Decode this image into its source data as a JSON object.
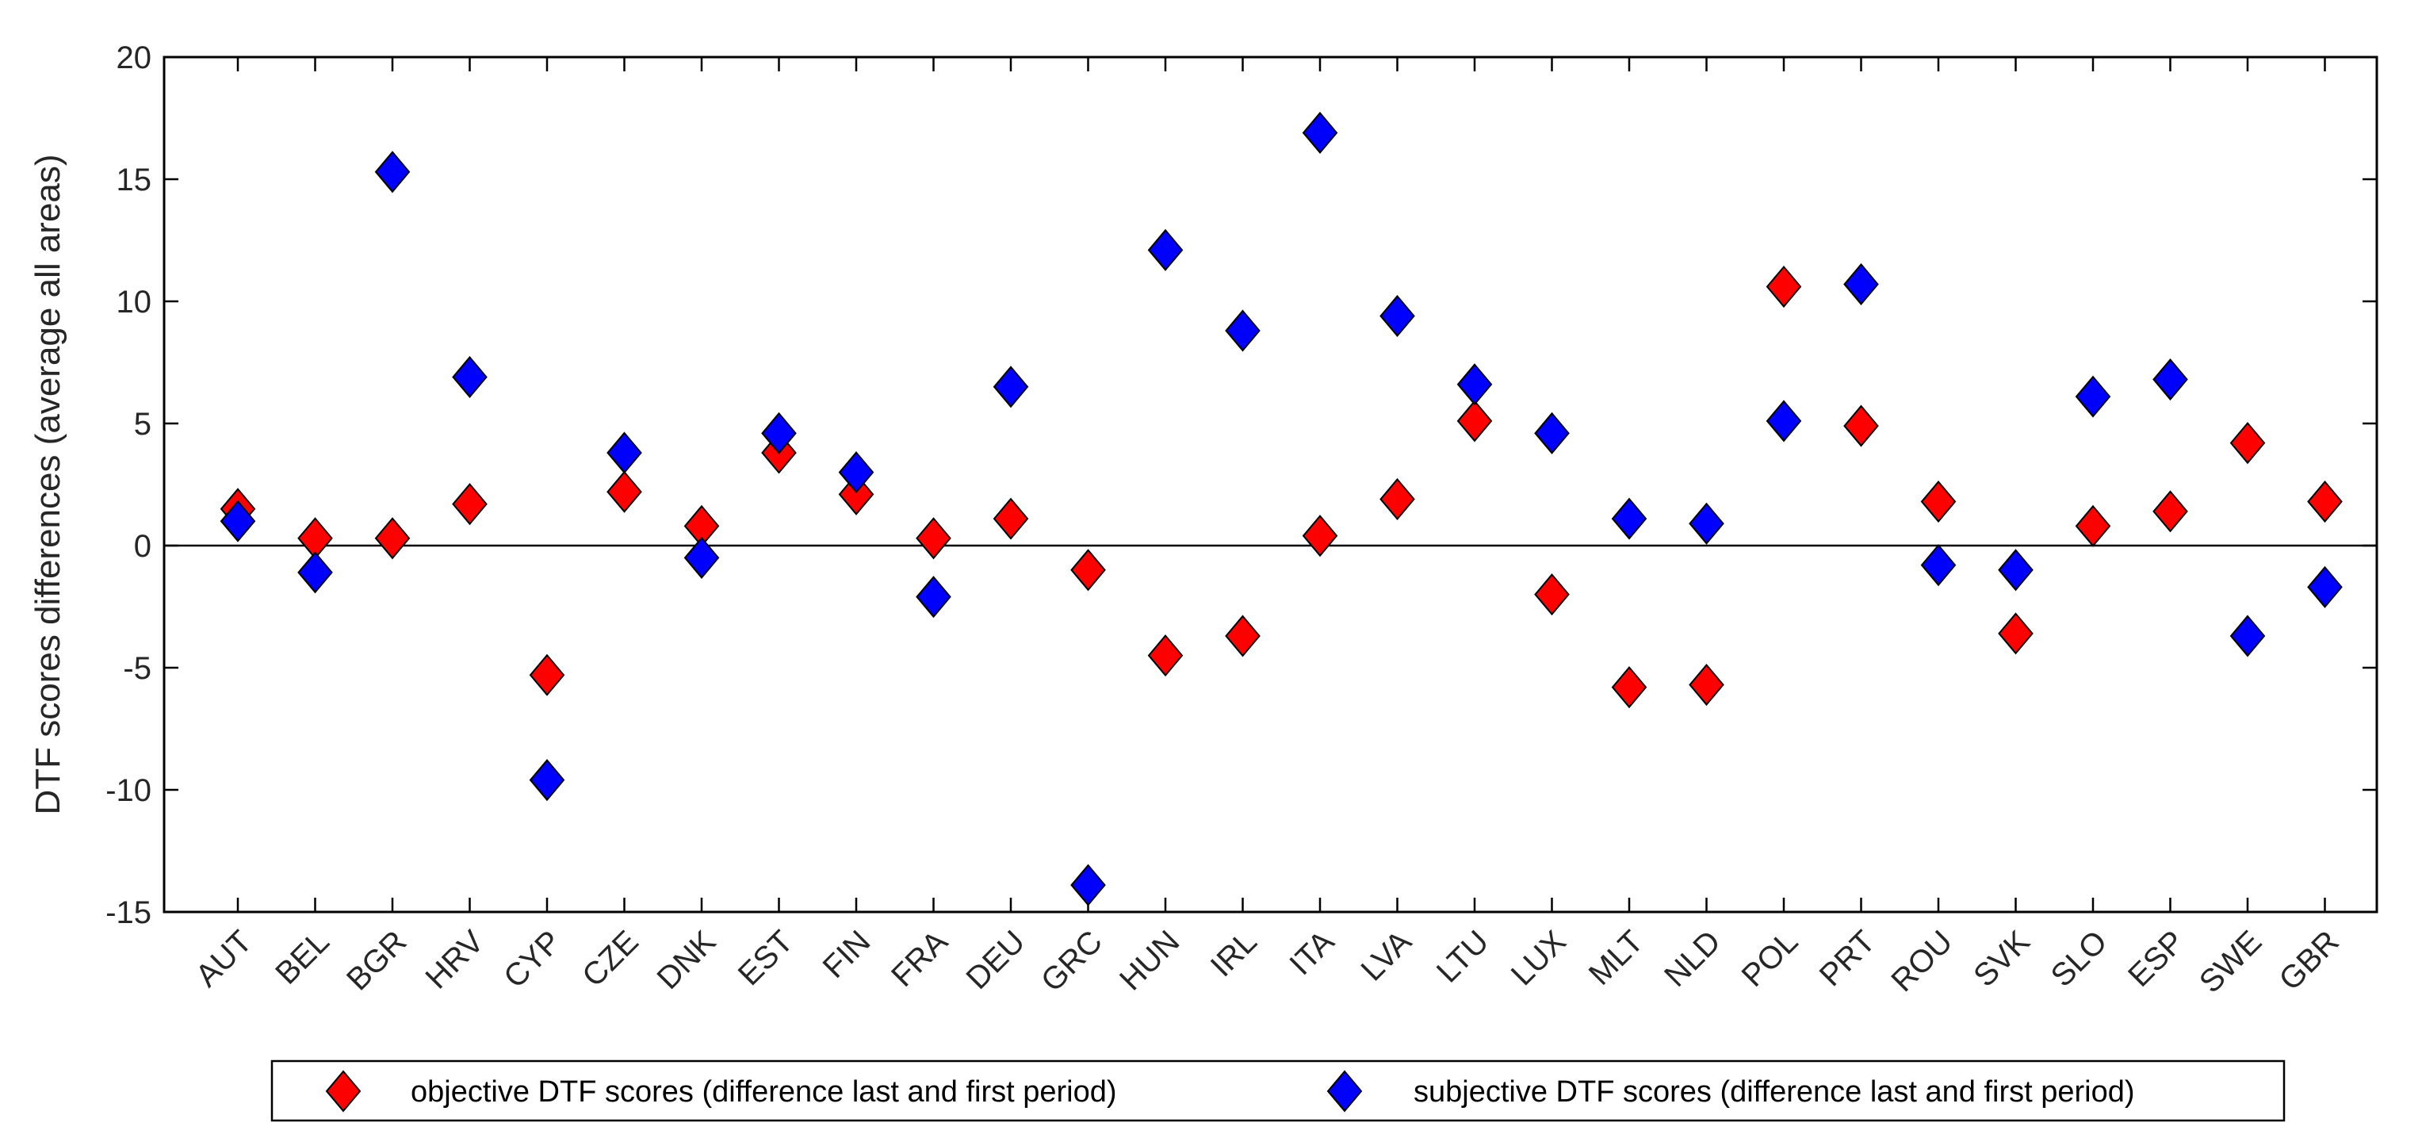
{
  "chart_data": {
    "type": "scatter",
    "title": "",
    "xlabel": "",
    "ylabel": "DTF scores differences (average all areas)",
    "ylim": [
      -15,
      20
    ],
    "yticks": [
      -15,
      -10,
      -5,
      0,
      5,
      10,
      15,
      20
    ],
    "categories": [
      "AUT",
      "BEL",
      "BGR",
      "HRV",
      "CYP",
      "CZE",
      "DNK",
      "EST",
      "FIN",
      "FRA",
      "DEU",
      "GRC",
      "HUN",
      "IRL",
      "ITA",
      "LVA",
      "LTU",
      "LUX",
      "MLT",
      "NLD",
      "POL",
      "PRT",
      "ROU",
      "SVK",
      "SLO",
      "ESP",
      "SWE",
      "GBR"
    ],
    "series": [
      {
        "name": "objective DTF scores (difference last and first period)",
        "color": "#ff0000",
        "marker": "diamond",
        "values": [
          1.5,
          0.3,
          0.3,
          1.7,
          -5.3,
          2.2,
          0.8,
          3.8,
          2.1,
          0.3,
          1.1,
          -1.0,
          -4.5,
          -3.7,
          0.4,
          1.9,
          5.1,
          -2.0,
          -5.8,
          -5.7,
          10.6,
          4.9,
          1.8,
          -3.6,
          0.8,
          1.4,
          4.2,
          1.8
        ]
      },
      {
        "name": "subjective DTF scores (difference last and first period)",
        "color": "#0000ff",
        "marker": "diamond",
        "values": [
          1.0,
          -1.1,
          15.3,
          6.9,
          -9.6,
          3.8,
          -0.5,
          4.6,
          3.0,
          -2.1,
          6.5,
          -13.9,
          12.1,
          8.8,
          16.9,
          9.4,
          6.6,
          4.6,
          1.1,
          0.9,
          5.1,
          10.7,
          -0.8,
          -1.0,
          6.1,
          6.8,
          -3.7,
          -1.7
        ]
      }
    ],
    "reference_line": 0,
    "legend": "bottom-center"
  }
}
